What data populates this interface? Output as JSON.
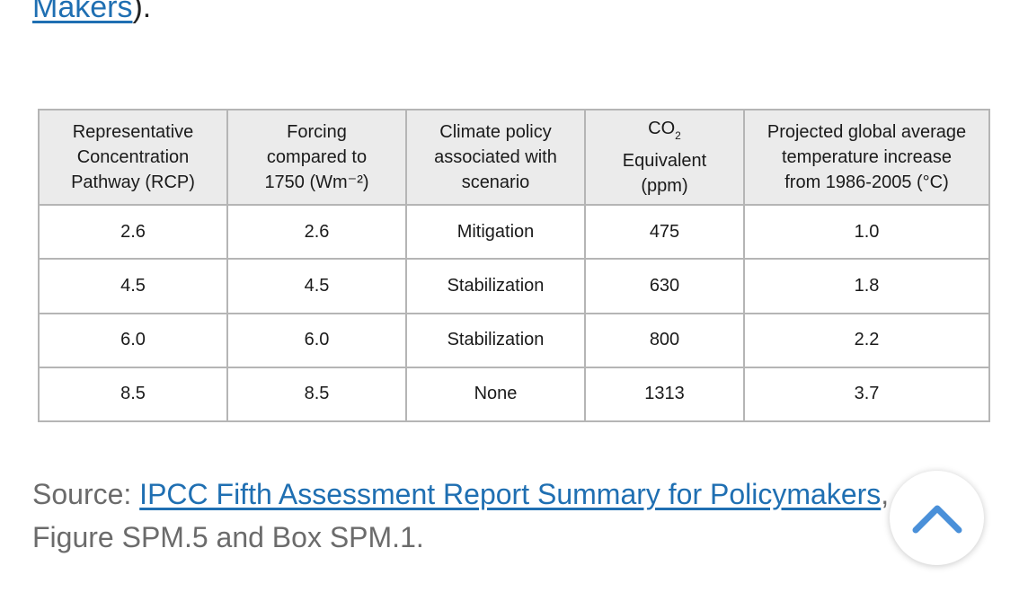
{
  "top_text": {
    "link_text": "Makers",
    "suffix": ")."
  },
  "table": {
    "headers": [
      [
        "Representative",
        "Concentration",
        "Pathway (RCP)"
      ],
      [
        "Forcing",
        "compared to",
        "1750 (Wm⁻²)"
      ],
      [
        "Climate policy",
        "associated with",
        "scenario"
      ],
      {
        "co2_main": "CO",
        "co2_sub": "2",
        "lines": [
          "Equivalent",
          "(ppm)"
        ]
      },
      [
        "Projected global average",
        "temperature increase",
        "from 1986-2005 (°C)"
      ]
    ],
    "rows": [
      [
        "2.6",
        "2.6",
        "Mitigation",
        "475",
        "1.0"
      ],
      [
        "4.5",
        "4.5",
        "Stabilization",
        "630",
        "1.8"
      ],
      [
        "6.0",
        "6.0",
        "Stabilization",
        "800",
        "2.2"
      ],
      [
        "8.5",
        "8.5",
        "None",
        "1313",
        "3.7"
      ]
    ]
  },
  "source": {
    "prefix": "Source: ",
    "link_text": "IPCC Fifth Assessment Report Summary for Policymakers",
    "suffix": ",",
    "line2": "Figure SPM.5 and Box SPM.1."
  },
  "scroll_top": {
    "icon": "chevron-up-icon",
    "color": "#4a90d9"
  }
}
